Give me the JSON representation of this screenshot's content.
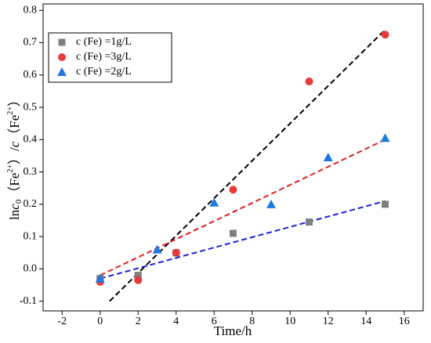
{
  "chart_data": {
    "type": "scatter",
    "xlabel": "Time/h",
    "ylabel": [
      "ln",
      "c",
      "0",
      "（Fe",
      "2+",
      "）/",
      "c",
      "（Fe",
      "2+",
      "）"
    ],
    "xlim": [
      -3,
      17
    ],
    "ylim": [
      -0.13,
      0.82
    ],
    "xticks": [
      -2,
      0,
      2,
      4,
      6,
      8,
      10,
      12,
      14,
      16
    ],
    "yticks": [
      -0.1,
      {
        "value": 0,
        "label": "0.0"
      },
      0.1,
      0.2,
      0.3,
      0.4,
      0.5,
      0.6,
      0.7,
      0.8
    ],
    "legend": "upper left",
    "series": [
      {
        "name": "c (Fe) =1g/L",
        "color": "#7f7f7f",
        "marker": "square",
        "x": [
          0,
          2,
          4,
          7,
          11,
          15
        ],
        "values": [
          -0.03,
          -0.02,
          0.05,
          0.11,
          0.145,
          0.2
        ],
        "fit": {
          "color": "#1f1fd6",
          "x": [
            0,
            15
          ],
          "values": [
            -0.03,
            0.21
          ]
        }
      },
      {
        "name": "c (Fe) =3g/L",
        "color": "#e8393b",
        "marker": "circle",
        "x": [
          0,
          2,
          4,
          7,
          11,
          15
        ],
        "values": [
          -0.04,
          -0.035,
          0.05,
          0.245,
          0.58,
          0.725
        ],
        "fit": {
          "color": "#000000",
          "x": [
            0.5,
            15
          ],
          "values": [
            -0.1,
            0.74
          ]
        }
      },
      {
        "name": "c (Fe) =2g/L",
        "color": "#1f78e0",
        "marker": "triangle",
        "x": [
          0,
          3,
          6,
          9,
          12,
          15
        ],
        "values": [
          -0.03,
          0.06,
          0.205,
          0.2,
          0.345,
          0.405
        ],
        "fit": {
          "color": "#e02020",
          "x": [
            0,
            15
          ],
          "values": [
            -0.02,
            0.4
          ]
        }
      }
    ]
  }
}
